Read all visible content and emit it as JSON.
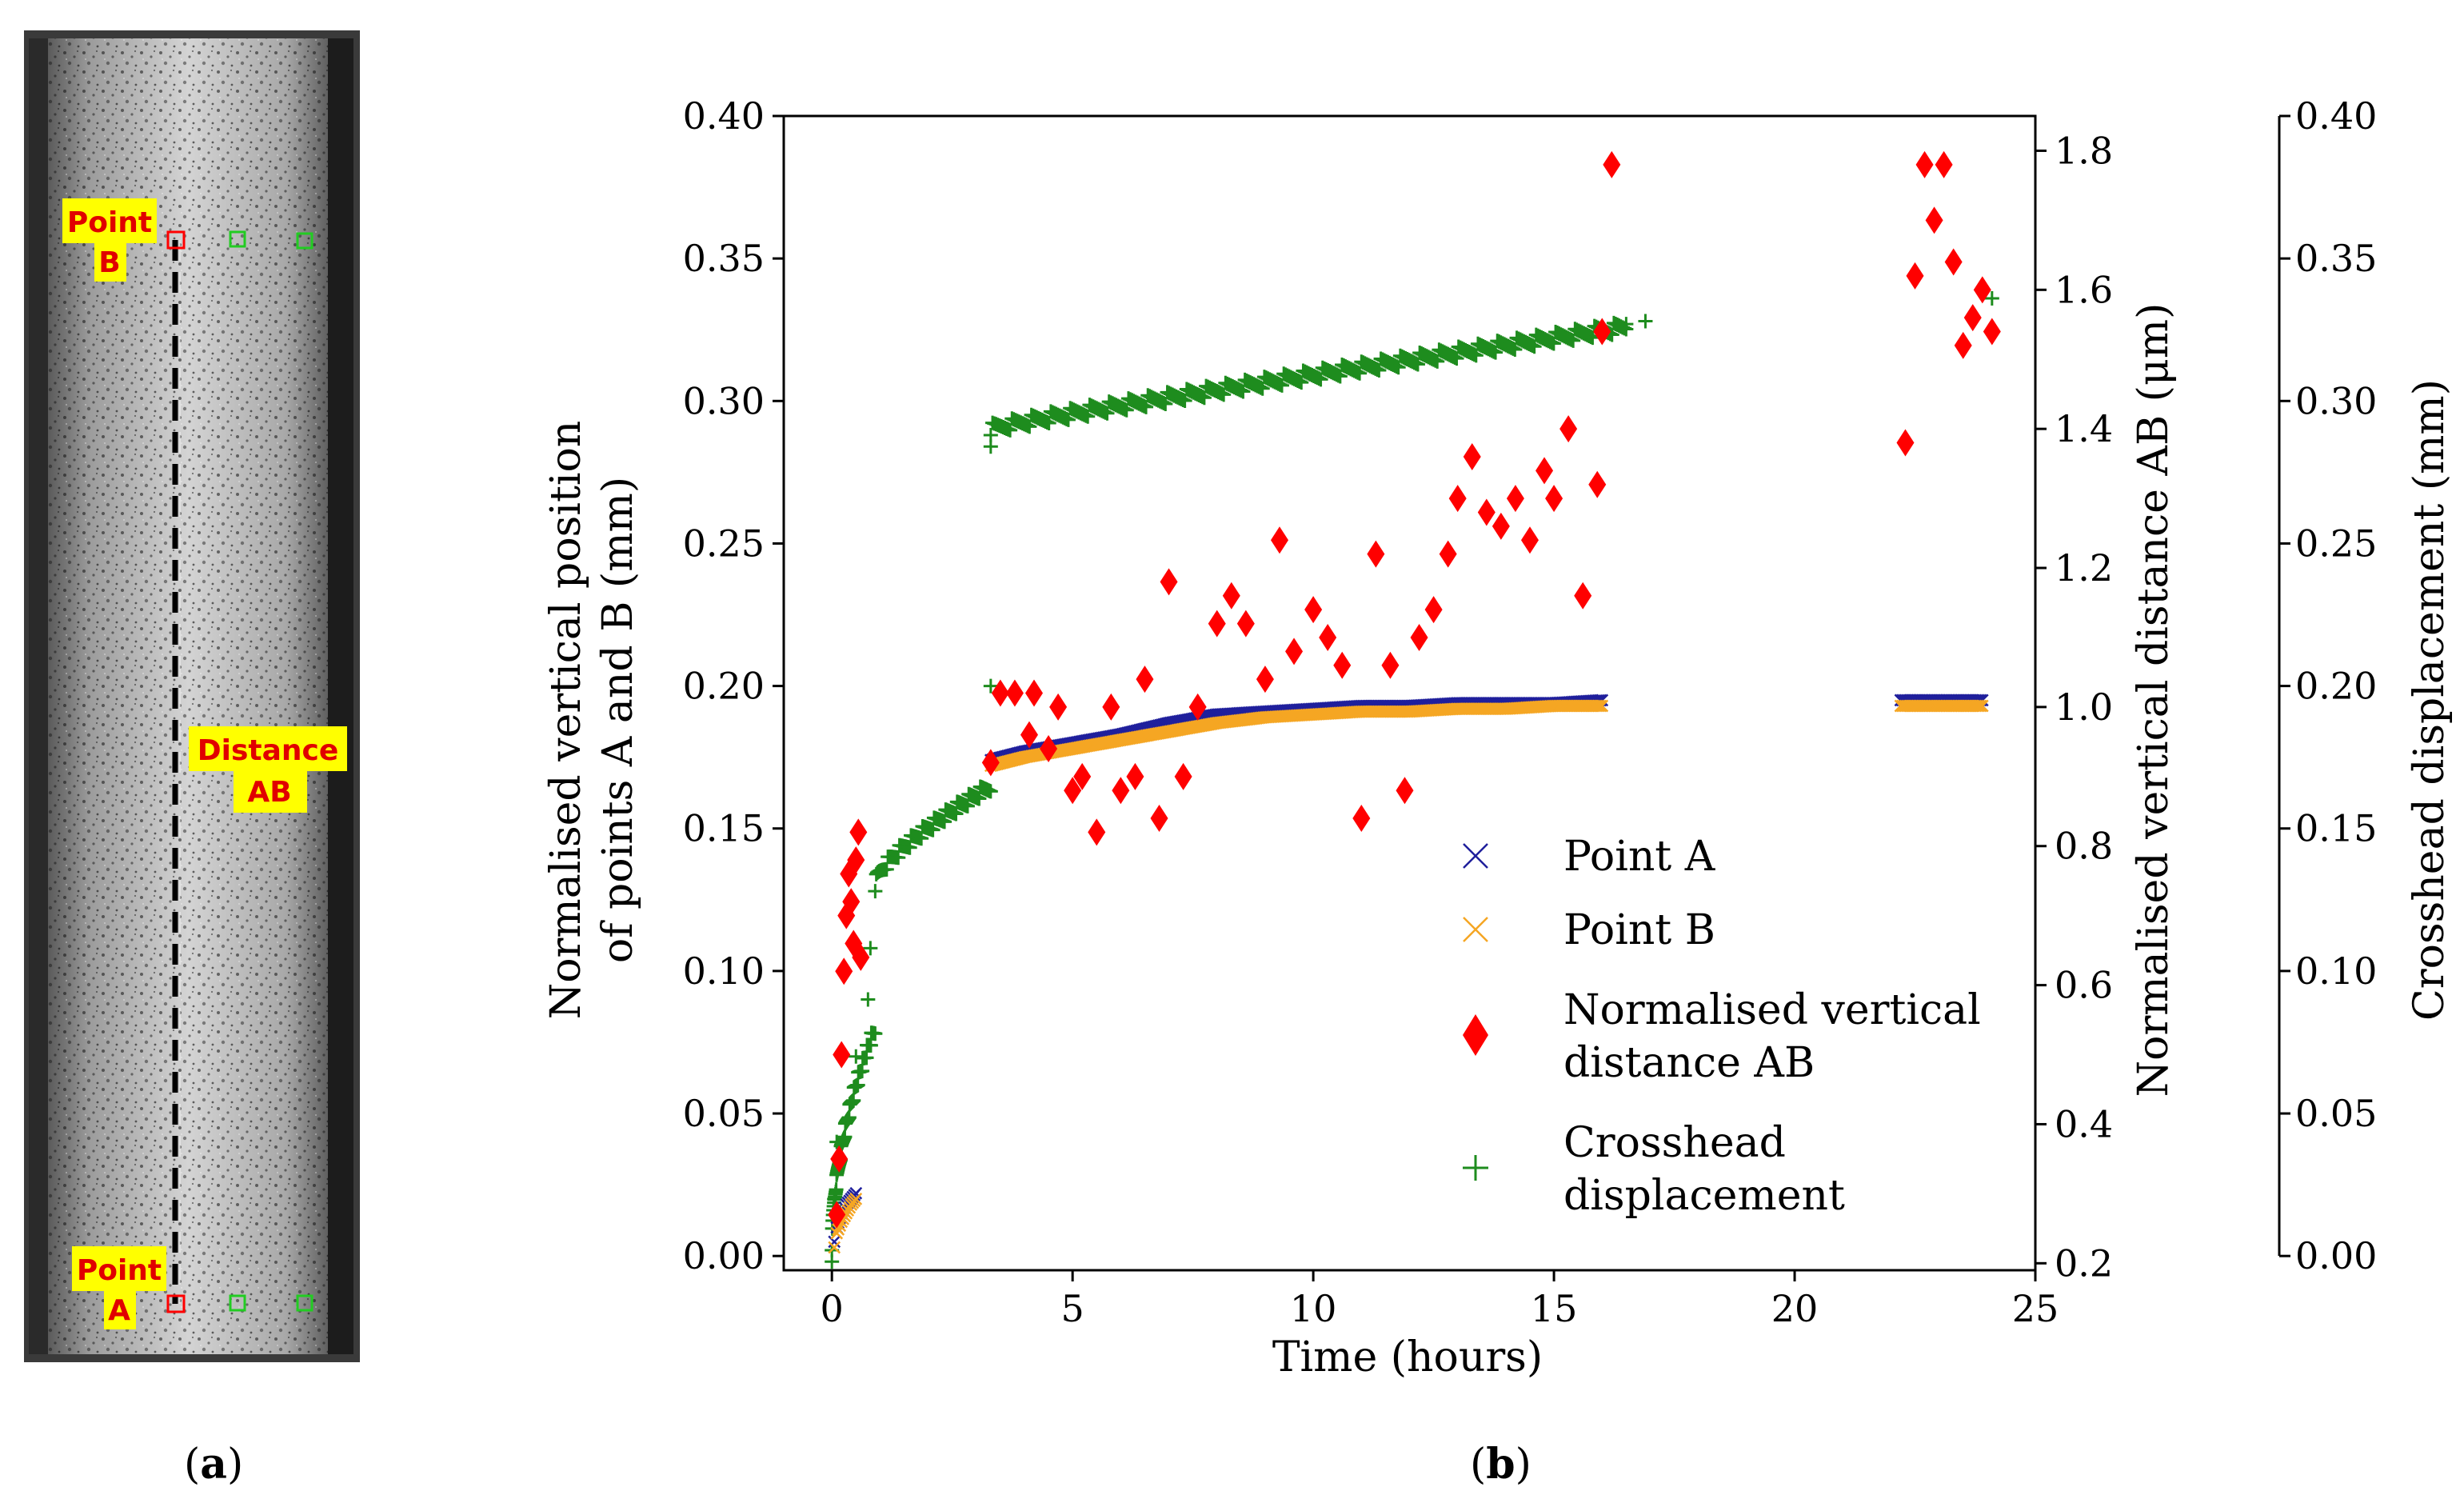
{
  "panel_a": {
    "labels": {
      "point_b": [
        "Point",
        "B"
      ],
      "distance_ab": [
        "Distance",
        "AB"
      ],
      "point_a": [
        "Point",
        "A"
      ]
    },
    "colors": {
      "label_bg": "#ffff00",
      "label_text": "#e00000",
      "marker_red": "#ff0000",
      "marker_green": "#22cc22"
    }
  },
  "captions": {
    "a_letter": "a",
    "b_letter": "b"
  },
  "chart_data": {
    "type": "scatter",
    "xlabel": "Time (hours)",
    "ylabel_left": [
      "Normalised vertical position",
      "of points A and B (mm)"
    ],
    "ylabel_right1": "Normalised vertical distance AB (μm)",
    "ylabel_right2": "Crosshead displacement (mm)",
    "xlim": [
      -1,
      25
    ],
    "ylim_left": [
      -0.005,
      0.4
    ],
    "ylim_right1": [
      0.19,
      1.85
    ],
    "ylim_right2": [
      0,
      0.4
    ],
    "x_ticks": [
      0,
      5,
      10,
      15,
      20,
      25
    ],
    "y_left_ticks": [
      "0.00",
      "0.05",
      "0.10",
      "0.15",
      "0.20",
      "0.25",
      "0.30",
      "0.35",
      "0.40"
    ],
    "y_right1_ticks": [
      "0.2",
      "0.4",
      "0.6",
      "0.8",
      "1.0",
      "1.2",
      "1.4",
      "1.6",
      "1.8"
    ],
    "y_right2_ticks": [
      "0.00",
      "0.05",
      "0.10",
      "0.15",
      "0.20",
      "0.25",
      "0.30",
      "0.35",
      "0.40"
    ],
    "legend_position": "lower-right",
    "series": [
      {
        "name": "Point A",
        "marker": "x",
        "color": "#1f1f9c",
        "axis": "left",
        "points": [
          [
            0.05,
            0.005
          ],
          [
            0.1,
            0.01
          ],
          [
            0.2,
            0.015
          ],
          [
            0.3,
            0.018
          ],
          [
            0.4,
            0.02
          ],
          [
            0.5,
            0.022
          ],
          [
            3.3,
            0.174
          ],
          [
            4,
            0.177
          ],
          [
            5,
            0.18
          ],
          [
            6,
            0.183
          ],
          [
            7,
            0.187
          ],
          [
            8,
            0.19
          ],
          [
            9,
            0.191
          ],
          [
            10,
            0.192
          ],
          [
            11,
            0.193
          ],
          [
            12,
            0.193
          ],
          [
            13,
            0.194
          ],
          [
            14,
            0.194
          ],
          [
            15,
            0.194
          ],
          [
            16,
            0.195
          ],
          [
            22.2,
            0.195
          ],
          [
            22.8,
            0.195
          ],
          [
            23.4,
            0.195
          ],
          [
            23.9,
            0.195
          ]
        ]
      },
      {
        "name": "Point B",
        "marker": "x",
        "color": "#f5a623",
        "axis": "left",
        "points": [
          [
            0.05,
            0.003
          ],
          [
            0.1,
            0.008
          ],
          [
            0.2,
            0.012
          ],
          [
            0.3,
            0.015
          ],
          [
            0.4,
            0.018
          ],
          [
            0.5,
            0.02
          ],
          [
            3.3,
            0.172
          ],
          [
            4,
            0.175
          ],
          [
            5,
            0.178
          ],
          [
            6,
            0.181
          ],
          [
            7,
            0.184
          ],
          [
            8,
            0.187
          ],
          [
            9,
            0.189
          ],
          [
            10,
            0.19
          ],
          [
            11,
            0.191
          ],
          [
            12,
            0.191
          ],
          [
            13,
            0.192
          ],
          [
            14,
            0.192
          ],
          [
            15,
            0.193
          ],
          [
            16,
            0.193
          ],
          [
            22.2,
            0.193
          ],
          [
            22.8,
            0.193
          ],
          [
            23.4,
            0.193
          ],
          [
            23.9,
            0.193
          ]
        ]
      },
      {
        "name": "Normalised vertical distance AB",
        "marker": "diamond",
        "color": "#ff0000",
        "axis": "right1",
        "points": [
          [
            0.1,
            0.27
          ],
          [
            0.15,
            0.35
          ],
          [
            0.2,
            0.5
          ],
          [
            0.25,
            0.62
          ],
          [
            0.3,
            0.7
          ],
          [
            0.35,
            0.76
          ],
          [
            0.4,
            0.72
          ],
          [
            0.45,
            0.66
          ],
          [
            0.5,
            0.78
          ],
          [
            0.55,
            0.82
          ],
          [
            0.6,
            0.64
          ],
          [
            3.3,
            0.92
          ],
          [
            3.5,
            1.02
          ],
          [
            3.8,
            1.02
          ],
          [
            4.1,
            0.96
          ],
          [
            4.2,
            1.02
          ],
          [
            4.5,
            0.94
          ],
          [
            4.7,
            1.0
          ],
          [
            5.0,
            0.88
          ],
          [
            5.2,
            0.9
          ],
          [
            5.5,
            0.82
          ],
          [
            5.8,
            1.0
          ],
          [
            6.0,
            0.88
          ],
          [
            6.3,
            0.9
          ],
          [
            6.5,
            1.04
          ],
          [
            6.8,
            0.84
          ],
          [
            7.0,
            1.18
          ],
          [
            7.3,
            0.9
          ],
          [
            7.6,
            1.0
          ],
          [
            8.0,
            1.12
          ],
          [
            8.3,
            1.16
          ],
          [
            8.6,
            1.12
          ],
          [
            9.0,
            1.04
          ],
          [
            9.3,
            1.24
          ],
          [
            9.6,
            1.08
          ],
          [
            10.0,
            1.14
          ],
          [
            10.3,
            1.1
          ],
          [
            10.6,
            1.06
          ],
          [
            11.0,
            0.84
          ],
          [
            11.3,
            1.22
          ],
          [
            11.6,
            1.06
          ],
          [
            11.9,
            0.88
          ],
          [
            12.2,
            1.1
          ],
          [
            12.5,
            1.14
          ],
          [
            12.8,
            1.22
          ],
          [
            13.0,
            1.3
          ],
          [
            13.3,
            1.36
          ],
          [
            13.6,
            1.28
          ],
          [
            13.9,
            1.26
          ],
          [
            14.2,
            1.3
          ],
          [
            14.5,
            1.24
          ],
          [
            14.8,
            1.34
          ],
          [
            15.0,
            1.3
          ],
          [
            15.3,
            1.4
          ],
          [
            15.6,
            1.16
          ],
          [
            15.9,
            1.32
          ],
          [
            16.0,
            1.54
          ],
          [
            16.2,
            1.78
          ],
          [
            22.3,
            1.38
          ],
          [
            22.5,
            1.62
          ],
          [
            22.7,
            1.78
          ],
          [
            22.9,
            1.7
          ],
          [
            23.1,
            1.78
          ],
          [
            23.3,
            1.64
          ],
          [
            23.5,
            1.52
          ],
          [
            23.7,
            1.56
          ],
          [
            23.9,
            1.6
          ],
          [
            24.1,
            1.54
          ]
        ]
      },
      {
        "name": "Crosshead displacement",
        "marker": "plus",
        "color": "#1e8c1e",
        "axis": "right2",
        "segments": [
          {
            "x": [
              0,
              0.9
            ],
            "y": [
              0,
              0.08
            ],
            "shape": "steep"
          },
          {
            "x": [
              0.9,
              3.3
            ],
            "y": [
              0.13,
              0.165
            ],
            "shape": "sqrt"
          },
          {
            "x": [
              3.3,
              16.5
            ],
            "y": [
              0.29,
              0.326
            ],
            "shape": "linearish"
          }
        ],
        "points": [
          [
            0.0,
            0.002
          ],
          [
            0.05,
            0.02
          ],
          [
            0.1,
            0.04
          ],
          [
            0.5,
            0.07
          ],
          [
            0.75,
            0.09
          ],
          [
            0.8,
            0.108
          ],
          [
            3.3,
            0.2
          ],
          [
            3.3,
            0.284
          ],
          [
            16.5,
            0.327
          ],
          [
            16.9,
            0.328
          ],
          [
            24.1,
            0.336
          ]
        ]
      }
    ]
  }
}
